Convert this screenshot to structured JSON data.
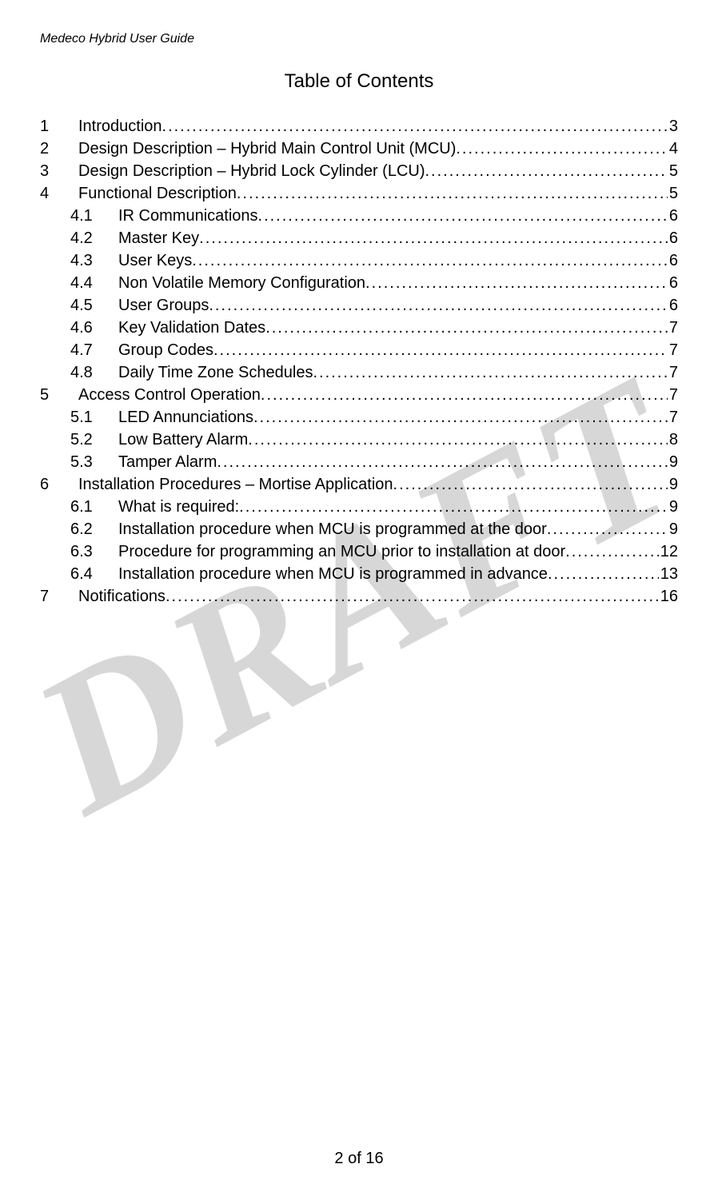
{
  "header": "Medeco Hybrid User Guide",
  "title": "Table of Contents",
  "footer": "2 of 16",
  "watermark": "DRAFT",
  "toc": [
    {
      "level": 1,
      "num": "1",
      "label": "Introduction",
      "page": "3"
    },
    {
      "level": 1,
      "num": "2",
      "label": "Design Description – Hybrid Main Control Unit (MCU)",
      "page": "4"
    },
    {
      "level": 1,
      "num": "3",
      "label": "Design Description – Hybrid Lock Cylinder (LCU)",
      "page": "5"
    },
    {
      "level": 1,
      "num": "4",
      "label": "Functional Description",
      "page": "5"
    },
    {
      "level": 2,
      "num": "4.1",
      "label": "IR Communications",
      "page": "6"
    },
    {
      "level": 2,
      "num": "4.2",
      "label": "Master Key",
      "page": "6"
    },
    {
      "level": 2,
      "num": "4.3",
      "label": "User Keys",
      "page": "6"
    },
    {
      "level": 2,
      "num": "4.4",
      "label": "Non Volatile Memory Configuration",
      "page": "6"
    },
    {
      "level": 2,
      "num": "4.5",
      "label": "User Groups",
      "page": "6"
    },
    {
      "level": 2,
      "num": "4.6",
      "label": "Key Validation Dates",
      "page": "7"
    },
    {
      "level": 2,
      "num": "4.7",
      "label": "Group Codes",
      "page": "7"
    },
    {
      "level": 2,
      "num": "4.8",
      "label": "Daily Time Zone Schedules",
      "page": "7"
    },
    {
      "level": 1,
      "num": "5",
      "label": "Access Control Operation",
      "page": "7"
    },
    {
      "level": 2,
      "num": "5.1",
      "label": "LED Annunciations",
      "page": "7"
    },
    {
      "level": 2,
      "num": "5.2",
      "label": "Low Battery Alarm",
      "page": "8"
    },
    {
      "level": 2,
      "num": "5.3",
      "label": "Tamper Alarm",
      "page": "9"
    },
    {
      "level": 1,
      "num": "6",
      "label": "Installation Procedures – Mortise Application",
      "page": "9"
    },
    {
      "level": 2,
      "num": "6.1",
      "label": "What is required:",
      "page": "9"
    },
    {
      "level": 2,
      "num": "6.2",
      "label": "Installation procedure when MCU is programmed at the door",
      "page": "9"
    },
    {
      "level": 2,
      "num": "6.3",
      "label": "Procedure for programming an MCU prior to installation at door",
      "page": "12"
    },
    {
      "level": 2,
      "num": "6.4",
      "label": "Installation procedure when MCU is programmed in advance",
      "page": "13"
    },
    {
      "level": 1,
      "num": "7",
      "label": "Notifications",
      "page": "16"
    }
  ]
}
